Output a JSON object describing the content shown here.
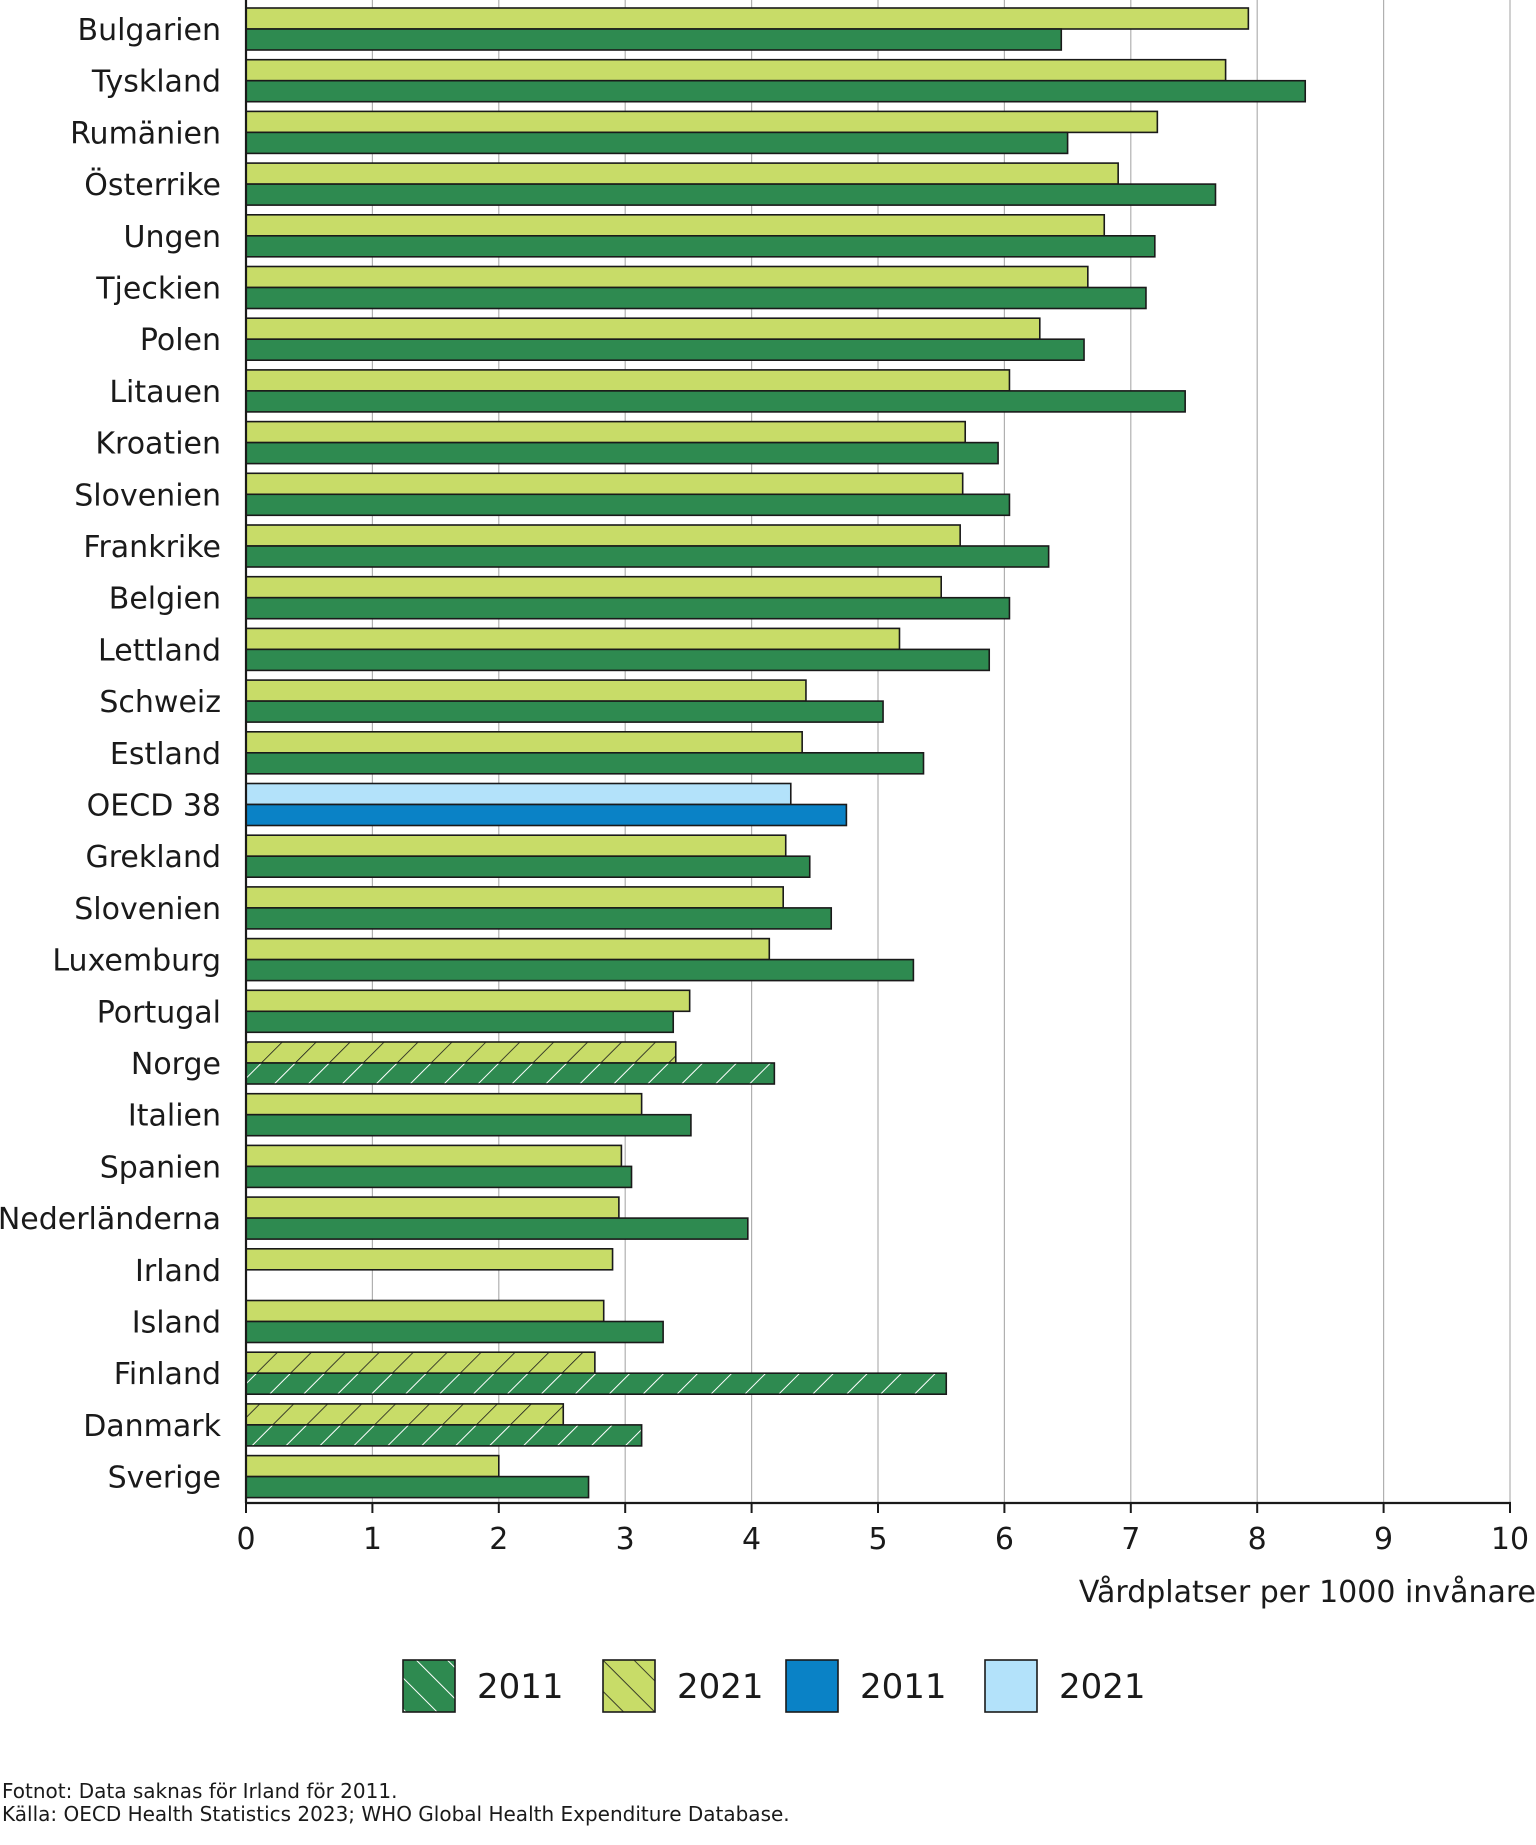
{
  "chart_data": {
    "type": "bar",
    "orientation": "horizontal",
    "xlabel": "Vårdplatser per 1000 invånare",
    "xlim": [
      0,
      10
    ],
    "xticks": [
      0,
      1,
      2,
      3,
      4,
      5,
      6,
      7,
      8,
      9,
      10
    ],
    "grid": true,
    "legend_position": "bottom",
    "categories": [
      "Bulgarien",
      "Tyskland",
      "Rumänien",
      "Österrike",
      "Ungen",
      "Tjeckien",
      "Polen",
      "Litauen",
      "Kroatien",
      "Slovenien",
      "Frankrike",
      "Belgien",
      "Lettland",
      "Schweiz",
      "Estland",
      "OECD 38",
      "Grekland",
      "Slovenien",
      "Luxemburg",
      "Portugal",
      "Norge",
      "Italien",
      "Spanien",
      "Nederländerna",
      "Irland",
      "Island",
      "Finland",
      "Danmark",
      "Sverige"
    ],
    "series": [
      {
        "name": "2021",
        "values": [
          7.93,
          7.75,
          7.21,
          6.9,
          6.79,
          6.66,
          6.28,
          6.04,
          5.69,
          5.67,
          5.65,
          5.5,
          5.17,
          4.43,
          4.4,
          4.31,
          4.27,
          4.25,
          4.14,
          3.51,
          3.4,
          3.13,
          2.97,
          2.95,
          2.9,
          2.83,
          2.76,
          2.51,
          2.0
        ]
      },
      {
        "name": "2011",
        "values": [
          6.45,
          8.38,
          6.5,
          7.67,
          7.19,
          7.12,
          6.63,
          7.43,
          5.95,
          6.04,
          6.35,
          6.04,
          5.88,
          5.04,
          5.36,
          4.75,
          4.46,
          4.63,
          5.28,
          3.38,
          4.18,
          3.52,
          3.05,
          3.97,
          null,
          3.3,
          5.54,
          3.13,
          2.71
        ]
      }
    ],
    "special_rows": {
      "oecd": [
        "OECD 38"
      ],
      "hatched": [
        "Norge",
        "Finland",
        "Danmark"
      ]
    },
    "legend": [
      {
        "label": "2011",
        "swatch": "hatched-dark-green"
      },
      {
        "label": "2021",
        "swatch": "hatched-light-green"
      },
      {
        "label": "2011",
        "swatch": "blue"
      },
      {
        "label": "2021",
        "swatch": "light-blue"
      }
    ],
    "colors": {
      "dark_green": "#2e8a50",
      "light_green": "#c8dc68",
      "blue": "#0a82c6",
      "light_blue": "#b3e2fa",
      "grid": "#b0b0b0",
      "outline": "#1a1a1a"
    }
  },
  "footnotes": {
    "note": "Fotnot: Data saknas för Irland för 2011.",
    "source": "Källa: OECD Health Statistics 2023; WHO Global Health Expenditure Database."
  }
}
